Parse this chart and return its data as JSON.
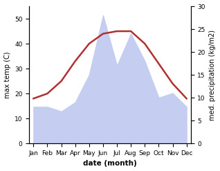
{
  "months": [
    "Jan",
    "Feb",
    "Mar",
    "Apr",
    "May",
    "Jun",
    "Jul",
    "Aug",
    "Sep",
    "Oct",
    "Nov",
    "Dec"
  ],
  "temperature": [
    18,
    20,
    25,
    33,
    40,
    44,
    45,
    45,
    40,
    32,
    24,
    18
  ],
  "precipitation": [
    8,
    8,
    7,
    9,
    15,
    28,
    17,
    24,
    18,
    10,
    11,
    8
  ],
  "temp_color": "#b03030",
  "precip_fill_color": "#c5cef0",
  "precip_alpha": 1.0,
  "left_ylabel": "max temp (C)",
  "right_ylabel": "med. precipitation (kg/m2)",
  "xlabel": "date (month)",
  "left_ylim": [
    0,
    55
  ],
  "right_ylim": [
    0,
    30
  ],
  "left_yticks": [
    0,
    10,
    20,
    30,
    40,
    50
  ],
  "right_yticks": [
    0,
    5,
    10,
    15,
    20,
    25,
    30
  ],
  "background_color": "#ffffff",
  "fig_width": 3.18,
  "fig_height": 2.47,
  "dpi": 100
}
